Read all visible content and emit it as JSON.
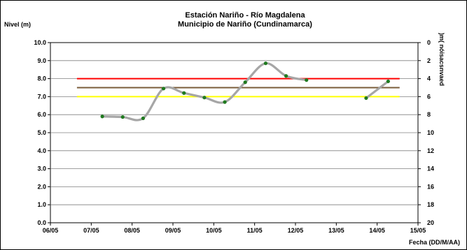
{
  "chart_data": {
    "type": "line",
    "title": "Estación Nariño  - Río Magdalena",
    "subtitle": "Municipio de Nariño (Cundinamarca)",
    "ylabel": "Nivel (m)",
    "xlabel": "Fecha (DD/M/AA)",
    "y2label": ")m( nóisacsnvaed",
    "xlim": [
      0,
      9
    ],
    "x_ticks": [
      "06/05",
      "07/05",
      "08/05",
      "09/05",
      "10/05",
      "11/05",
      "12/05",
      "13/05",
      "14/05",
      "15/05"
    ],
    "ylim": [
      0,
      10
    ],
    "y_ticks": [
      "0.0",
      "1.0",
      "2.0",
      "3.0",
      "4.0",
      "5.0",
      "6.0",
      "7.0",
      "8.0",
      "9.0",
      "10.0"
    ],
    "y2lim": [
      0,
      20
    ],
    "y2_ticks": [
      "0",
      "2",
      "4",
      "6",
      "8",
      "10",
      "12",
      "14",
      "16",
      "18",
      "20"
    ],
    "grid": true,
    "series": [
      {
        "segments": [
          {
            "x": [
              1.27,
              1.77,
              2.27,
              2.77,
              3.27,
              3.77,
              4.27,
              4.77,
              5.27,
              5.77,
              6.27
            ],
            "y": [
              5.9,
              5.87,
              5.8,
              7.45,
              7.2,
              6.95,
              6.7,
              7.8,
              8.85,
              8.15,
              7.92
            ]
          },
          {
            "x": [
              7.73,
              8.27
            ],
            "y": [
              6.92,
              7.85
            ]
          }
        ],
        "color": "#a6a6a6",
        "marker_color": "#1f7a1f"
      }
    ],
    "reference_lines": [
      {
        "y": 8.0,
        "x_range": [
          0.65,
          8.55
        ],
        "color": "#ff0000"
      },
      {
        "y": 7.5,
        "x_range": [
          0.65,
          8.55
        ],
        "color": "#7a5c3a"
      },
      {
        "y": 7.0,
        "x_range": [
          0.65,
          8.55
        ],
        "color": "#ffff00"
      }
    ]
  }
}
